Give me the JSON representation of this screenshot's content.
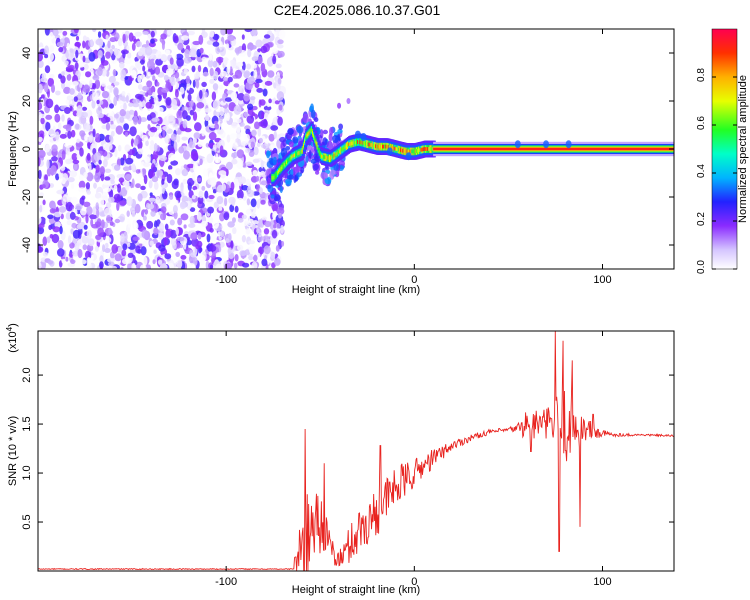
{
  "figure": {
    "title": "C2E4.2025.086.10.37.G01"
  },
  "chart_data": [
    {
      "type": "heatmap",
      "name": "spectrogram",
      "xlabel": "Height of straight line (km)",
      "ylabel": "Frequency (Hz)",
      "xlim": [
        -200,
        138
      ],
      "ylim": [
        -50,
        50
      ],
      "xticks": [
        -100,
        0,
        100
      ],
      "xtick_labels": [
        "-100",
        "0",
        "100"
      ],
      "yticks": [
        -40,
        -20,
        0,
        20,
        40
      ],
      "ytick_labels": [
        "-40",
        "-20",
        "0",
        "20",
        "40"
      ],
      "colorbar": {
        "label": "Normalized spectral amplitude",
        "range": [
          0.0,
          1.0
        ],
        "ticks": [
          0.0,
          0.2,
          0.4,
          0.6,
          0.8
        ],
        "tick_labels": [
          "0.0",
          "0.2",
          "0.4",
          "0.6",
          "0.8"
        ]
      },
      "signal_center_hz": [
        [
          -75,
          -12
        ],
        [
          -70,
          -7
        ],
        [
          -65,
          -3
        ],
        [
          -60,
          -1
        ],
        [
          -58,
          5
        ],
        [
          -55,
          8
        ],
        [
          -50,
          -3
        ],
        [
          -45,
          -4
        ],
        [
          -40,
          -1
        ],
        [
          -35,
          2
        ],
        [
          -30,
          3
        ],
        [
          -25,
          2
        ],
        [
          -20,
          1
        ],
        [
          -15,
          1
        ],
        [
          -10,
          0
        ],
        [
          -5,
          -1
        ],
        [
          0,
          -1
        ],
        [
          5,
          0
        ],
        [
          10,
          0
        ],
        [
          30,
          0
        ],
        [
          60,
          0
        ],
        [
          80,
          0
        ],
        [
          100,
          0
        ],
        [
          138,
          0
        ]
      ],
      "noise_region_km": [
        -200,
        -72
      ]
    },
    {
      "type": "line",
      "name": "snr",
      "xlabel": "Height of straight line (km)",
      "ylabel": "SNR (10 * v/v)",
      "y_multiplier": "(x10",
      "y_multiplier_exp": "4",
      "xlim": [
        -200,
        138
      ],
      "ylim": [
        0,
        2.45
      ],
      "xticks": [
        -100,
        0,
        100
      ],
      "xtick_labels": [
        "-100",
        "0",
        "100"
      ],
      "yticks": [
        0.5,
        1.0,
        1.5,
        2.0
      ],
      "ytick_labels": [
        "0.5",
        "1.0",
        "1.5",
        "2.0"
      ],
      "color": "#e8231f",
      "envelope_x": [
        -200,
        -65,
        -58,
        -52,
        -48,
        -45,
        -40,
        -30,
        -20,
        -10,
        0,
        10,
        20,
        30,
        40,
        50,
        55,
        60,
        70,
        80,
        90,
        100,
        110,
        120,
        138
      ],
      "envelope_y": [
        0.02,
        0.02,
        0.3,
        0.55,
        0.45,
        0.25,
        0.1,
        0.4,
        0.6,
        0.85,
        1.0,
        1.15,
        1.28,
        1.36,
        1.42,
        1.44,
        1.46,
        1.5,
        1.5,
        1.52,
        1.45,
        1.4,
        1.39,
        1.39,
        1.38
      ],
      "noise_amp": [
        0.01,
        0.01,
        0.9,
        0.8,
        0.5,
        0.3,
        0.25,
        0.5,
        0.5,
        0.45,
        0.3,
        0.2,
        0.1,
        0.07,
        0.05,
        0.05,
        0.1,
        0.35,
        0.3,
        0.9,
        0.3,
        0.08,
        0.03,
        0.02,
        0.02
      ],
      "peaks": [
        [
          -58,
          1.45
        ],
        [
          -48,
          1.1
        ],
        [
          -18,
          1.28
        ],
        [
          62,
          1.22
        ],
        [
          75,
          2.45
        ],
        [
          77,
          0.2
        ],
        [
          79,
          2.35
        ],
        [
          84,
          2.15
        ],
        [
          88,
          0.45
        ],
        [
          95,
          1.6
        ]
      ]
    }
  ]
}
